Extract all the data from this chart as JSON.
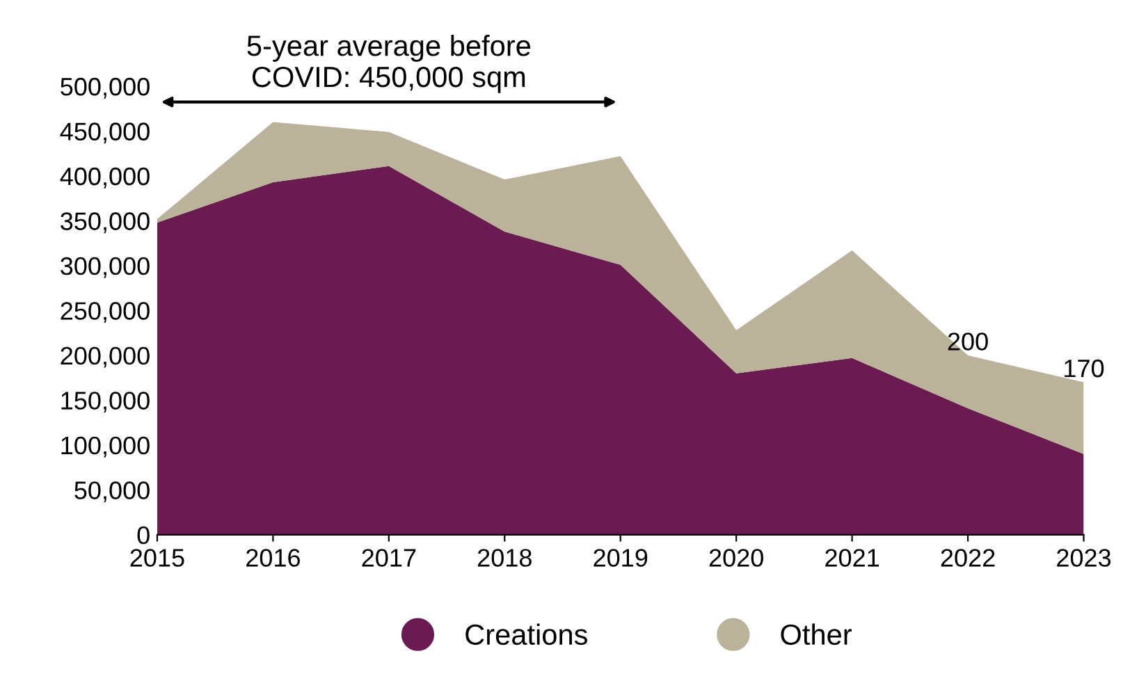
{
  "chart_data": {
    "type": "area",
    "stacked": true,
    "x": [
      2015,
      2016,
      2017,
      2018,
      2019,
      2020,
      2021,
      2022,
      2023
    ],
    "series": [
      {
        "name": "Creations",
        "color": "#6b1a52",
        "values": [
          348000,
          393000,
          411000,
          338000,
          301000,
          180000,
          197000,
          141000,
          90000
        ]
      },
      {
        "name": "Other",
        "color": "#bbb29a",
        "values": [
          4000,
          67000,
          38000,
          58000,
          121000,
          48000,
          120000,
          59000,
          80000
        ]
      }
    ],
    "xlim": [
      2015,
      2023
    ],
    "xticks": [
      2015,
      2016,
      2017,
      2018,
      2019,
      2020,
      2021,
      2022,
      2023
    ],
    "ylim": [
      0,
      500000
    ],
    "yticks": [
      {
        "value": 0,
        "label": "0"
      },
      {
        "value": 50000,
        "label": "50,000"
      },
      {
        "value": 100000,
        "label": "100,000"
      },
      {
        "value": 150000,
        "label": "150,000"
      },
      {
        "value": 200000,
        "label": "200,000"
      },
      {
        "value": 250000,
        "label": "250,000"
      },
      {
        "value": 300000,
        "label": "300,000"
      },
      {
        "value": 350000,
        "label": "350,000"
      },
      {
        "value": 400000,
        "label": "400,000"
      },
      {
        "value": 450000,
        "label": "450,000"
      },
      {
        "value": 500000,
        "label": "500,000"
      }
    ],
    "annotations": [
      "5-year average before\nCOVID: 450,000 sqm",
      {
        "text": "200",
        "x": 2022,
        "y": 200000
      },
      {
        "text": "170",
        "x": 2023,
        "y": 170000
      }
    ],
    "grid": false,
    "legend": "bottom"
  }
}
